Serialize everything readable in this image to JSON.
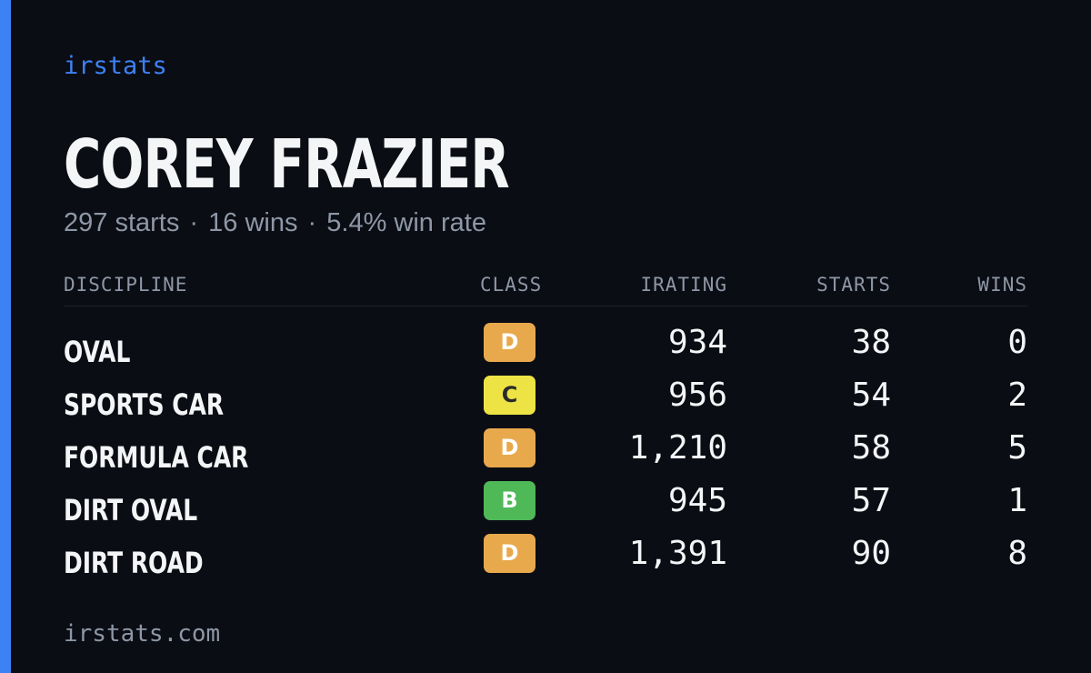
{
  "brand": "irstats",
  "driver": {
    "name": "COREY FRAZIER",
    "starts": "297 starts",
    "wins": "16 wins",
    "win_rate": "5.4% win rate",
    "separator": "·"
  },
  "table": {
    "headers": {
      "discipline": "DISCIPLINE",
      "class": "CLASS",
      "irating": "IRATING",
      "starts": "STARTS",
      "wins": "WINS"
    },
    "rows": [
      {
        "discipline": "OVAL",
        "class": "D",
        "class_color": "#e8a94c",
        "class_text_color": "#ffffff",
        "irating": "934",
        "starts": "38",
        "wins": "0"
      },
      {
        "discipline": "SPORTS CAR",
        "class": "C",
        "class_color": "#ede345",
        "class_text_color": "#2a2a2a",
        "irating": "956",
        "starts": "54",
        "wins": "2"
      },
      {
        "discipline": "FORMULA CAR",
        "class": "D",
        "class_color": "#e8a94c",
        "class_text_color": "#ffffff",
        "irating": "1,210",
        "starts": "58",
        "wins": "5"
      },
      {
        "discipline": "DIRT OVAL",
        "class": "B",
        "class_color": "#4fb857",
        "class_text_color": "#ffffff",
        "irating": "945",
        "starts": "57",
        "wins": "1"
      },
      {
        "discipline": "DIRT ROAD",
        "class": "D",
        "class_color": "#e8a94c",
        "class_text_color": "#ffffff",
        "irating": "1,391",
        "starts": "90",
        "wins": "8"
      }
    ]
  },
  "footer": "irstats.com",
  "colors": {
    "accent": "#3d82f5",
    "background": "#0b0d14",
    "text": "#f4f5f7",
    "muted": "#8e97a6"
  }
}
